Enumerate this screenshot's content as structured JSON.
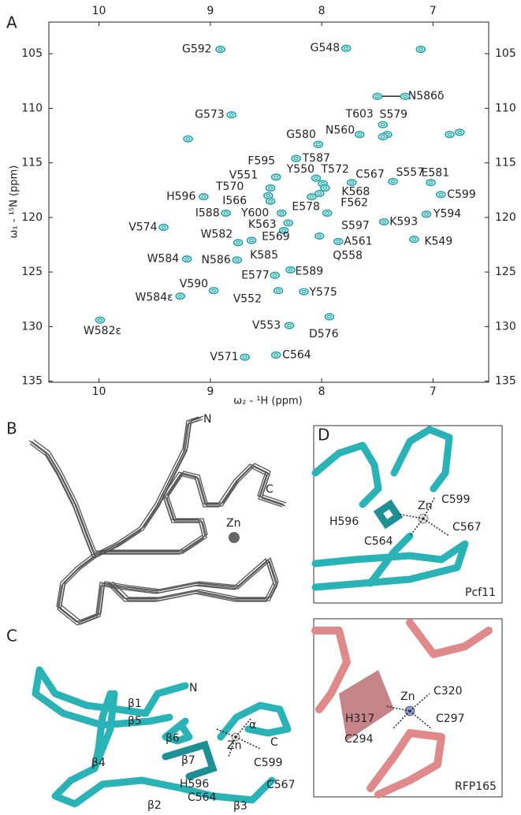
{
  "panels": [
    "A",
    "B",
    "C",
    "D"
  ],
  "chart_data": {
    "type": "scatter",
    "xlabel": "ω₂ - ¹H (ppm)",
    "ylabel": "ω₁ - ¹⁵N (ppm)",
    "xlim": [
      10.45,
      6.5
    ],
    "ylim": [
      102.1,
      135.1
    ],
    "xticks": [
      10,
      9,
      8,
      7
    ],
    "yticks": [
      105,
      110,
      115,
      120,
      125,
      130,
      135
    ],
    "color": "#1fa5a8",
    "labels": [
      "G592",
      "G548",
      "N586δ",
      "G573",
      "G580",
      "N560",
      "T603",
      "S579",
      "T587",
      "F595",
      "Y550",
      "T572",
      "C567",
      "S557",
      "E581",
      "V551",
      "K568",
      "C599",
      "T570",
      "I566",
      "F562",
      "H596",
      "E578",
      "Y600",
      "I588",
      "Y594",
      "K593",
      "K563",
      "S597",
      "V574",
      "E569",
      "A561",
      "W582",
      "K549",
      "K585",
      "Q558",
      "W584",
      "N586",
      "E589",
      "E577",
      "V590",
      "V552",
      "Y575",
      "W584ε",
      "W582ε",
      "V553",
      "D576",
      "V571",
      "C564",
      null,
      null,
      null,
      null,
      null,
      null
    ],
    "x": [
      8.91,
      7.78,
      7.5,
      8.81,
      8.03,
      7.66,
      7.45,
      7.41,
      8.23,
      8.41,
      8.05,
      7.99,
      7.73,
      7.36,
      7.02,
      8.46,
      7.97,
      6.93,
      8.48,
      8.46,
      8.02,
      9.06,
      8.09,
      8.36,
      8.86,
      7.06,
      7.44,
      8.3,
      7.95,
      9.42,
      8.34,
      7.85,
      8.75,
      7.17,
      8.63,
      8.02,
      9.21,
      8.76,
      8.28,
      8.42,
      8.97,
      8.39,
      8.16,
      9.27,
      9.99,
      8.29,
      7.93,
      8.69,
      8.41,
      7.11,
      7.25,
      6.85,
      6.76,
      9.2,
      7.45
    ],
    "values": [
      104.6,
      104.5,
      108.9,
      110.6,
      113.3,
      112.4,
      111.5,
      112.4,
      114.6,
      116.3,
      116.4,
      116.9,
      116.8,
      116.7,
      116.8,
      117.3,
      117.3,
      117.9,
      118.0,
      118.5,
      117.8,
      118.1,
      118.1,
      119.6,
      119.6,
      119.7,
      120.4,
      120.5,
      119.6,
      120.9,
      121.2,
      122.2,
      122.3,
      122.0,
      122.1,
      121.7,
      123.8,
      123.9,
      124.8,
      125.3,
      126.7,
      126.7,
      126.8,
      127.2,
      129.4,
      129.9,
      129.1,
      132.8,
      132.6,
      104.6,
      108.9,
      112.4,
      112.2,
      112.8,
      112.6
    ]
  },
  "structure_b": {
    "labels": [
      "N",
      "C",
      "Zn"
    ]
  },
  "structure_c": {
    "labels": [
      "N",
      "β1",
      "β5",
      "β6",
      "α",
      "C",
      "β4",
      "β7",
      "Zn",
      "C599",
      "H596",
      "C567",
      "C564",
      "β2",
      "β3"
    ]
  },
  "structure_d_pcf11": {
    "labels": [
      "Zn",
      "C599",
      "H596",
      "C567",
      "C564"
    ],
    "caption": "Pcf11"
  },
  "structure_d_rfp165": {
    "labels": [
      "Zn",
      "C320",
      "H317",
      "C297",
      "C294"
    ],
    "caption": "RFP165"
  }
}
